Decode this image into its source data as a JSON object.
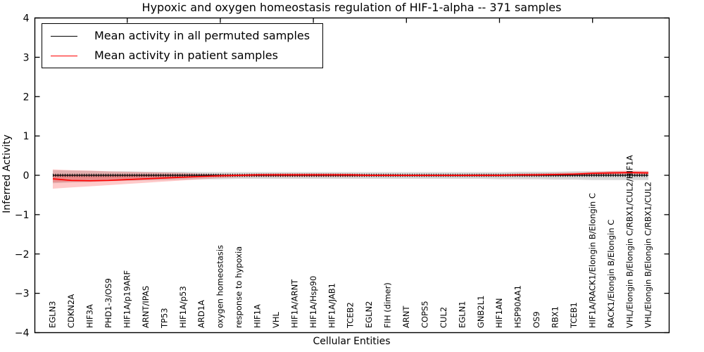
{
  "chart_data": {
    "type": "line",
    "title": "Hypoxic and oxygen homeostasis regulation of HIF-1-alpha -- 371 samples",
    "xlabel": "Cellular Entities",
    "ylabel": "Inferred Activity",
    "ylim": [
      -4,
      4
    ],
    "yticks": [
      4,
      3,
      2,
      1,
      0,
      -1,
      -2,
      -3,
      -4
    ],
    "ytick_labels": [
      "4",
      "3",
      "2",
      "1",
      "0",
      "−1",
      "−2",
      "−3",
      "−4"
    ],
    "grid": false,
    "legend_position": "upper left",
    "legend": [
      {
        "label": "Mean activity in all permuted samples",
        "color": "#000000"
      },
      {
        "label": "Mean activity in patient samples",
        "color": "#ff0000"
      }
    ],
    "categories": [
      "EGLN3",
      "CDKN2A",
      "HIF3A",
      "PHD1-3/OS9",
      "HIF1A/p19ARF",
      "ARNT/IPAS",
      "TP53",
      "HIF1A/p53",
      "ARD1A",
      "oxygen homeostasis",
      "response to hypoxia",
      "HIF1A",
      "VHL",
      "HIF1A/ARNT",
      "HIF1A/Hsp90",
      "HIF1A/JAB1",
      "TCEB2",
      "EGLN2",
      "FIH (dimer)",
      "ARNT",
      "COPS5",
      "CUL2",
      "EGLN1",
      "GNB2L1",
      "HIF1AN",
      "HSP90AA1",
      "OS9",
      "RBX1",
      "TCEB1",
      "HIF1A/RACK1/Elongin B/Elongin C",
      "RACK1/Elongin B/Elongin C",
      "VHL/Elongin B/Elongin C/RBX1/CUL2/HIF1A",
      "VHL/Elongin B/Elongin C/RBX1/CUL2"
    ],
    "series": [
      {
        "name": "Mean activity in all permuted samples",
        "color": "#000000",
        "values": [
          0,
          0,
          0,
          0,
          0,
          0,
          0,
          0,
          0,
          0,
          0,
          0,
          0,
          0,
          0,
          0,
          0,
          0,
          0,
          0,
          0,
          0,
          0,
          0,
          0,
          0,
          0,
          0,
          0,
          0,
          0,
          0,
          0
        ]
      },
      {
        "name": "Mean activity in patient samples",
        "color": "#ff0000",
        "values": [
          -0.09,
          -0.13,
          -0.14,
          -0.13,
          -0.11,
          -0.09,
          -0.07,
          -0.05,
          -0.03,
          -0.01,
          0.0,
          0.01,
          0.01,
          0.01,
          0.01,
          0.01,
          0.01,
          0.0,
          0.0,
          0.0,
          0.0,
          0.0,
          0.0,
          0.0,
          0.0,
          0.01,
          0.01,
          0.02,
          0.03,
          0.05,
          0.06,
          0.07,
          0.06
        ]
      }
    ],
    "bands": [
      {
        "name": "permuted-std-band",
        "color": "#909090",
        "opacity": 0.35,
        "upper": [
          0.13,
          0.12,
          0.11,
          0.1,
          0.1,
          0.09,
          0.09,
          0.09,
          0.08,
          0.08,
          0.08,
          0.08,
          0.08,
          0.08,
          0.08,
          0.08,
          0.08,
          0.08,
          0.08,
          0.08,
          0.08,
          0.08,
          0.08,
          0.08,
          0.08,
          0.09,
          0.09,
          0.09,
          0.1,
          0.1,
          0.1,
          0.1,
          0.1
        ],
        "lower": [
          -0.2,
          -0.18,
          -0.17,
          -0.15,
          -0.14,
          -0.13,
          -0.12,
          -0.11,
          -0.1,
          -0.1,
          -0.09,
          -0.09,
          -0.09,
          -0.09,
          -0.09,
          -0.09,
          -0.09,
          -0.09,
          -0.09,
          -0.09,
          -0.09,
          -0.09,
          -0.09,
          -0.09,
          -0.1,
          -0.1,
          -0.1,
          -0.11,
          -0.11,
          -0.12,
          -0.12,
          -0.12,
          -0.12
        ]
      },
      {
        "name": "patient-std-band-outer",
        "color": "#ff2a2a",
        "opacity": 0.25,
        "upper": [
          0.15,
          0.13,
          0.12,
          0.1,
          0.09,
          0.08,
          0.07,
          0.06,
          0.04,
          0.03,
          0.03,
          0.04,
          0.05,
          0.05,
          0.05,
          0.05,
          0.04,
          0.03,
          0.03,
          0.02,
          0.02,
          0.02,
          0.02,
          0.03,
          0.03,
          0.04,
          0.05,
          0.06,
          0.07,
          0.09,
          0.11,
          0.12,
          0.11
        ],
        "lower": [
          -0.34,
          -0.31,
          -0.28,
          -0.25,
          -0.22,
          -0.19,
          -0.16,
          -0.13,
          -0.1,
          -0.07,
          -0.05,
          -0.04,
          -0.04,
          -0.04,
          -0.04,
          -0.04,
          -0.04,
          -0.03,
          -0.03,
          -0.03,
          -0.03,
          -0.03,
          -0.03,
          -0.03,
          -0.03,
          -0.02,
          -0.02,
          -0.01,
          0.0,
          0.01,
          0.02,
          0.03,
          0.02
        ]
      },
      {
        "name": "patient-std-band-inner",
        "color": "#ff2a2a",
        "opacity": 0.28,
        "upper": [
          0.02,
          0.01,
          0.0,
          0.0,
          0.0,
          0.0,
          0.0,
          0.01,
          0.01,
          0.01,
          0.01,
          0.02,
          0.02,
          0.02,
          0.02,
          0.02,
          0.01,
          0.01,
          0.01,
          0.01,
          0.01,
          0.01,
          0.01,
          0.01,
          0.01,
          0.02,
          0.02,
          0.03,
          0.04,
          0.06,
          0.08,
          0.09,
          0.08
        ],
        "lower": [
          -0.17,
          -0.16,
          -0.15,
          -0.13,
          -0.11,
          -0.09,
          -0.07,
          -0.05,
          -0.04,
          -0.03,
          -0.02,
          -0.02,
          -0.02,
          -0.02,
          -0.02,
          -0.02,
          -0.02,
          -0.02,
          -0.02,
          -0.02,
          -0.02,
          -0.02,
          -0.02,
          -0.02,
          -0.02,
          -0.01,
          -0.01,
          0.0,
          0.01,
          0.02,
          0.03,
          0.04,
          0.03
        ]
      }
    ],
    "top_tick_indices": [
      4,
      9,
      14,
      19,
      24,
      29
    ]
  }
}
